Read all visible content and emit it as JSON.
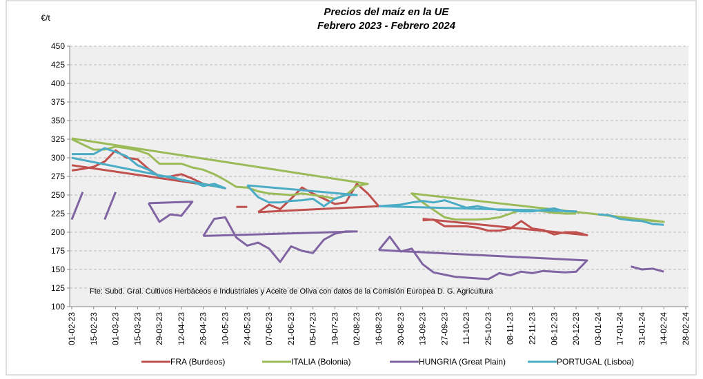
{
  "chart_data": {
    "type": "line",
    "title": "Precios del maíz en la UE",
    "subtitle": "Febrero 2023 - Febrero 2024",
    "y_label": "€/t",
    "note": "Fte: Subd. Gral. Cultivos Herbáceos e Industriales y Aceite de Oliva con datos de la Comisión Europea D. G. Agricultura",
    "ylim": [
      100,
      450
    ],
    "yticks": [
      100,
      125,
      150,
      175,
      200,
      225,
      250,
      275,
      300,
      325,
      350,
      375,
      400,
      425,
      450
    ],
    "xlim": [
      "2023-02-01",
      "2024-02-28"
    ],
    "xticks": [
      {
        "value": "2023-02-01",
        "label": "01-02-23"
      },
      {
        "value": "2023-02-15",
        "label": "15-02-23"
      },
      {
        "value": "2023-03-01",
        "label": "01-03-23"
      },
      {
        "value": "2023-03-15",
        "label": "15-03-23"
      },
      {
        "value": "2023-03-29",
        "label": "29-03-23"
      },
      {
        "value": "2023-04-12",
        "label": "12-04-23"
      },
      {
        "value": "2023-04-26",
        "label": "26-04-23"
      },
      {
        "value": "2023-05-10",
        "label": "10-05-23"
      },
      {
        "value": "2023-05-24",
        "label": "24-05-23"
      },
      {
        "value": "2023-06-07",
        "label": "07-06-23"
      },
      {
        "value": "2023-06-21",
        "label": "21-06-23"
      },
      {
        "value": "2023-07-05",
        "label": "05-07-23"
      },
      {
        "value": "2023-07-19",
        "label": "19-07-23"
      },
      {
        "value": "2023-08-02",
        "label": "02-08-23"
      },
      {
        "value": "2023-08-16",
        "label": "16-08-23"
      },
      {
        "value": "2023-08-30",
        "label": "30-08-23"
      },
      {
        "value": "2023-09-13",
        "label": "13-09-23"
      },
      {
        "value": "2023-09-27",
        "label": "27-09-23"
      },
      {
        "value": "2023-10-11",
        "label": "11-10-23"
      },
      {
        "value": "2023-10-25",
        "label": "25-10-23"
      },
      {
        "value": "2023-11-08",
        "label": "08-11-23"
      },
      {
        "value": "2023-11-22",
        "label": "22-11-23"
      },
      {
        "value": "2023-12-06",
        "label": "06-12-23"
      },
      {
        "value": "2023-12-20",
        "label": "20-12-23"
      },
      {
        "value": "2024-01-03",
        "label": "03-01-24"
      },
      {
        "value": "2024-01-17",
        "label": "17-01-24"
      },
      {
        "value": "2024-01-31",
        "label": "31-01-24"
      },
      {
        "value": "2024-02-14",
        "label": "14-02-24"
      },
      {
        "value": "2024-02-28",
        "label": "28-02-24"
      }
    ],
    "grid": true,
    "legend": "bottom",
    "series": [
      {
        "name": "FRA (Burdeos)",
        "color": "#c0504d",
        "x": [
          "2023-02-01",
          "2023-02-08",
          "2023-02-15",
          "2023-02-22",
          "2023-03-01",
          "2023-03-08",
          "2023-03-15",
          "2023-03-22",
          "2023-03-29",
          "2023-04-05",
          "2023-04-12",
          "2023-04-19",
          "2023-04-26",
          "2023-05-03",
          "2023-02-01",
          null,
          "2023-05-17",
          "2023-05-24",
          null,
          "2023-05-31",
          "2023-06-07",
          "2023-06-14",
          "2023-06-21",
          "2023-06-28",
          "2023-07-05",
          "2023-07-12",
          "2023-07-19",
          "2023-07-26",
          "2023-08-02",
          "2023-08-09",
          "2023-08-16",
          "2023-05-31",
          null,
          "2023-09-13",
          "2023-09-20",
          "2023-09-27",
          "2023-10-04",
          "2023-10-11",
          "2023-10-18",
          "2023-10-25",
          "2023-11-01",
          "2023-11-08",
          "2023-11-15",
          "2023-11-22",
          "2023-11-29",
          "2023-12-06",
          "2023-12-13",
          "2023-12-20",
          "2023-12-27",
          "2023-09-13"
        ],
        "values": [
          283,
          285,
          288,
          295,
          310,
          300,
          298,
          285,
          275,
          275,
          278,
          272,
          265,
          262,
          290,
          null,
          234,
          234,
          null,
          227,
          237,
          231,
          245,
          260,
          252,
          245,
          238,
          240,
          265,
          252,
          235,
          227,
          null,
          216,
          217,
          208,
          208,
          208,
          206,
          202,
          202,
          205,
          215,
          205,
          203,
          197,
          200,
          200,
          196,
          218
        ]
      },
      {
        "name": "ITALIA (Bolonia)",
        "color": "#9bbb59",
        "x": [
          "2023-02-01",
          "2023-02-08",
          "2023-02-15",
          "2023-02-22",
          "2023-03-01",
          "2023-03-08",
          "2023-03-15",
          "2023-03-22",
          "2023-03-29",
          "2023-04-05",
          "2023-04-12",
          "2023-04-19",
          "2023-04-26",
          "2023-05-03",
          "2023-05-10",
          "2023-05-17",
          "2023-05-24",
          "2023-05-31",
          "2023-06-07",
          "2023-06-14",
          "2023-06-21",
          "2023-06-28",
          "2023-07-05",
          "2023-07-12",
          "2023-07-19",
          "2023-07-26",
          "2023-08-02",
          "2023-08-09",
          "2023-02-01",
          null,
          "2024-01-03",
          "2024-01-10",
          "2024-01-17",
          "2024-01-24",
          "2024-01-31",
          "2024-02-07",
          "2024-02-14",
          "2023-09-06",
          "2023-09-13",
          "2023-09-20",
          "2023-09-27",
          "2023-10-04",
          "2023-10-11",
          "2023-10-18",
          "2023-10-25",
          "2023-11-01",
          "2023-11-08",
          "2023-11-15",
          "2023-11-22",
          "2023-11-29",
          "2023-12-06",
          "2023-12-13",
          "2023-12-20"
        ],
        "values": [
          325,
          318,
          311,
          311,
          315,
          313,
          310,
          305,
          292,
          292,
          292,
          287,
          284,
          278,
          270,
          261,
          260,
          255,
          252,
          251,
          250,
          252,
          250,
          248,
          245,
          250,
          262,
          265,
          326,
          null,
          224,
          222,
          220,
          218,
          217,
          215,
          214,
          252,
          240,
          230,
          220,
          217,
          217,
          217,
          218,
          220,
          225,
          230,
          230,
          228,
          226,
          225,
          225
        ]
      },
      {
        "name": "HUNGRIA (Great Plain)",
        "color": "#8064a2",
        "x": [
          "2023-02-01",
          "2023-02-08",
          null,
          "2023-02-22",
          "2023-03-01",
          null,
          "2023-03-22",
          "2023-03-29",
          "2023-04-05",
          "2023-04-12",
          "2023-04-19",
          "2023-03-22",
          null,
          "2023-04-26",
          "2023-05-03",
          "2023-05-10",
          "2023-05-17",
          "2023-05-24",
          "2023-05-31",
          "2023-06-07",
          "2023-06-14",
          "2023-06-21",
          "2023-06-28",
          "2023-07-05",
          "2023-07-12",
          "2023-07-19",
          "2023-07-26",
          "2023-08-02",
          "2023-04-26",
          null,
          "2023-08-16",
          "2023-08-23",
          "2023-08-30",
          "2023-09-06",
          "2023-09-13",
          "2023-09-20",
          "2023-09-27",
          "2023-10-04",
          "2023-10-11",
          "2023-10-18",
          "2023-10-25",
          "2023-11-01",
          "2023-11-08",
          "2023-11-15",
          "2023-11-22",
          "2023-11-29",
          "2023-12-06",
          "2023-12-13",
          "2023-12-20",
          "2023-12-27",
          "2023-08-16",
          null,
          "2024-01-24",
          "2024-01-31",
          "2024-02-07",
          "2024-02-14"
        ],
        "values": [
          217,
          254,
          null,
          217,
          254,
          null,
          239,
          214,
          224,
          222,
          241,
          239,
          null,
          195,
          218,
          220,
          193,
          182,
          186,
          178,
          160,
          181,
          175,
          172,
          190,
          198,
          201,
          201,
          195,
          null,
          176,
          194,
          174,
          178,
          157,
          146,
          143,
          140,
          139,
          138,
          137,
          145,
          142,
          147,
          145,
          148,
          147,
          146,
          147,
          162,
          176,
          null,
          154,
          150,
          151,
          147
        ]
      },
      {
        "name": "PORTUGAL (Lisboa)",
        "color": "#4bacc6",
        "x": [
          "2023-02-01",
          "2023-02-08",
          "2023-02-15",
          "2023-02-22",
          "2023-03-01",
          "2023-03-08",
          "2023-03-15",
          "2023-03-22",
          "2023-03-29",
          "2023-04-05",
          "2023-04-12",
          "2023-04-19",
          "2023-04-26",
          "2023-05-03",
          "2023-05-10",
          "2023-02-01",
          null,
          "2023-05-24",
          "2023-05-31",
          "2023-06-07",
          "2023-06-14",
          "2023-06-21",
          "2023-06-28",
          "2023-07-05",
          "2023-07-12",
          "2023-07-19",
          "2023-07-26",
          "2023-08-02",
          "2023-05-24",
          null,
          "2023-08-16",
          "2023-08-23",
          "2023-08-30",
          "2023-09-06",
          "2023-09-13",
          "2023-09-20",
          "2023-09-27",
          "2023-10-04",
          "2023-10-11",
          "2023-10-18",
          "2023-10-25",
          "2023-11-01",
          "2023-11-08",
          "2023-11-15",
          "2023-11-22",
          "2023-11-29",
          "2023-12-06",
          "2023-12-13",
          "2023-12-20",
          "2023-08-16",
          null,
          "2024-01-03",
          "2024-01-10",
          "2024-01-17",
          "2024-01-24",
          "2024-01-31",
          "2024-02-07",
          "2024-02-14"
        ],
        "values": [
          305,
          305,
          305,
          313,
          308,
          302,
          290,
          284,
          275,
          275,
          270,
          268,
          262,
          265,
          259,
          300,
          null,
          263,
          247,
          240,
          240,
          242,
          243,
          245,
          235,
          245,
          250,
          250,
          263,
          null,
          235,
          236,
          237,
          240,
          242,
          240,
          243,
          238,
          233,
          235,
          232,
          230,
          230,
          228,
          228,
          230,
          232,
          228,
          228,
          235,
          null,
          224,
          223,
          218,
          216,
          215,
          211,
          210
        ]
      }
    ]
  }
}
